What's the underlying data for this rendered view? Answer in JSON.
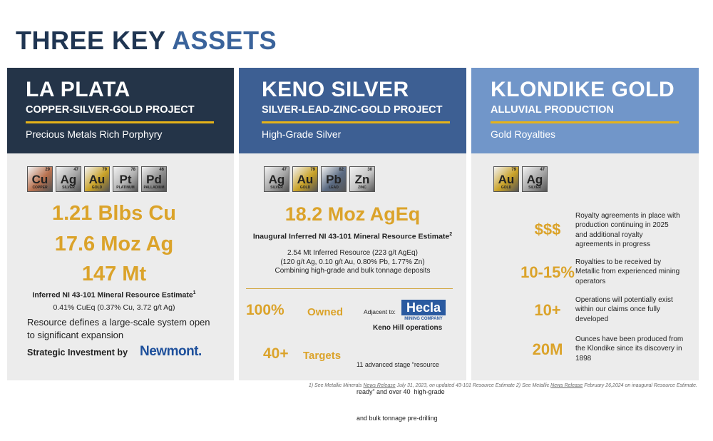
{
  "header": {
    "title_dark": "THREE KEY",
    "title_accent": "ASSETS"
  },
  "columns": [
    {
      "name": "LA PLATA",
      "subtitle": "COPPER-SILVER-GOLD PROJECT",
      "tagline": "Precious Metals Rich Porphyry",
      "elements": [
        {
          "number": "29",
          "symbol": "Cu",
          "name": "COPPER",
          "color": "#b8714f"
        },
        {
          "number": "47",
          "symbol": "Ag",
          "name": "SILVER",
          "color": "#a5a5a5"
        },
        {
          "number": "79",
          "symbol": "Au",
          "name": "GOLD",
          "color": "#c9a227"
        },
        {
          "number": "78",
          "symbol": "Pt",
          "name": "PLATINUM",
          "color": "#b3b3b3"
        },
        {
          "number": "46",
          "symbol": "Pd",
          "name": "PALLADIUM",
          "color": "#8e8e8e"
        }
      ],
      "highlights": [
        "1.21 Blbs Cu",
        "17.6 Moz Ag",
        "147 Mt"
      ],
      "estimate": {
        "text": "Inferred NI 43-101 Mineral Resource Estimate",
        "note": "1"
      },
      "grade": "0.41% CuEq (0.37% Cu, 3.72 g/t Ag)",
      "description": [
        "Resource defines a large-scale system open",
        "to significant expansion"
      ],
      "investment": {
        "label": "Strategic Investment by",
        "partner": "Newmont."
      }
    },
    {
      "name": "KENO SILVER",
      "subtitle": "SILVER-LEAD-ZINC-GOLD PROJECT",
      "tagline": "High-Grade Silver",
      "elements": [
        {
          "number": "47",
          "symbol": "Ag",
          "name": "SILVER",
          "color": "#a5a5a5"
        },
        {
          "number": "79",
          "symbol": "Au",
          "name": "GOLD",
          "color": "#c9a227"
        },
        {
          "number": "82",
          "symbol": "Pb",
          "name": "LEAD",
          "color": "#5a6a82"
        },
        {
          "number": "30",
          "symbol": "Zn",
          "name": "ZINC",
          "color": "#c4c4c4"
        }
      ],
      "highlight": "18.2 Moz AgEq",
      "estimate": {
        "text": "Inaugural Inferred NI 43-101 Mineral Resource Estimate",
        "note": "2"
      },
      "details": [
        "2.54 Mt Inferred Resource (223 g/t AgEq)",
        "(120 g/t Ag, 0.10 g/t Au, 0.80% Pb, 1.77% Zn)",
        "Combining high-grade and bulk tonnage deposits"
      ],
      "ownership": {
        "figure": "100%",
        "label": "Owned",
        "adjacent_label": "Adjacent to:",
        "partner": "Hecla",
        "partner_sub": "MINING COMPANY",
        "operation": "Keno Hill operations"
      },
      "targets": {
        "figure": "40+",
        "label": "Targets",
        "description": [
          "11 advanced stage “resource",
          "ready” and over 40  high-grade",
          "and bulk tonnage pre-drilling"
        ]
      }
    },
    {
      "name": "KLONDIKE GOLD",
      "subtitle": "ALLUVIAL PRODUCTION",
      "tagline": "Gold Royalties",
      "elements": [
        {
          "number": "79",
          "symbol": "Au",
          "name": "GOLD",
          "color": "#c9a227"
        },
        {
          "number": "47",
          "symbol": "Ag",
          "name": "SILVER",
          "color": "#a5a5a5"
        }
      ],
      "facts": [
        {
          "figure": "$$$",
          "text": [
            "Royalty agreements in place with",
            "production continuing in 2025",
            "and additional royalty",
            "agreements in progress"
          ]
        },
        {
          "figure": "10-15%",
          "text": [
            "Royalties to be received by",
            "Metallic from experienced mining",
            "operators"
          ]
        },
        {
          "figure": "10+",
          "text": [
            "Operations will potentially exist",
            "within our claims once fully",
            "developed"
          ]
        },
        {
          "figure": "20M",
          "text": [
            "Ounces have been produced from",
            "the Klondike since its discovery in",
            "1898"
          ]
        }
      ]
    }
  ],
  "footnote": {
    "parts": [
      "1) See Metallic Minerals ",
      "News Release",
      " July 31, 2023, on updated 43-101 Resource Estimate 2) See Metallic ",
      "News Release",
      " February 26,2024 on inaugural Resource Estimate."
    ]
  }
}
